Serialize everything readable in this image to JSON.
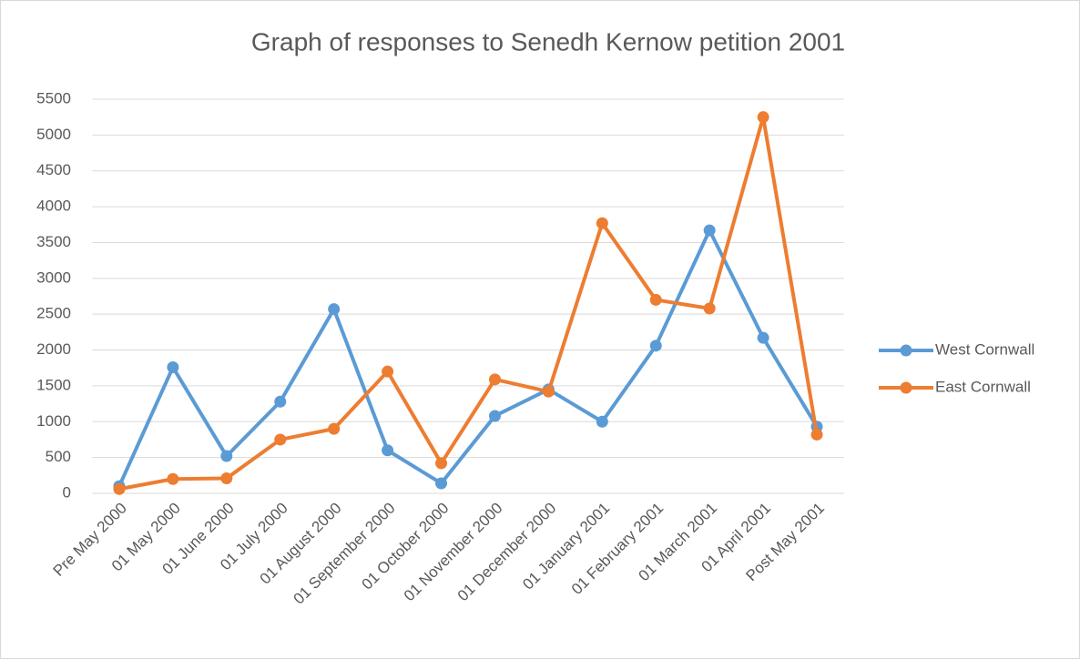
{
  "chart_data": {
    "type": "line",
    "title": "Graph of responses to Senedh Kernow petition 2001",
    "categories": [
      "Pre May 2000",
      "01 May 2000",
      "01 June 2000",
      "01 July 2000",
      "01 August 2000",
      "01 September 2000",
      "01 October 2000",
      "01 November 2000",
      "01 December 2000",
      "01 January 2001",
      "01 February 2001",
      "01 March 2001",
      "01 April 2001",
      "Post May 2001"
    ],
    "series": [
      {
        "name": "West Cornwall",
        "color": "#5b9bd5",
        "values": [
          100,
          1760,
          520,
          1280,
          2570,
          600,
          140,
          1080,
          1450,
          1000,
          2060,
          3670,
          2170,
          930
        ]
      },
      {
        "name": "East Cornwall",
        "color": "#ed7d31",
        "values": [
          60,
          200,
          210,
          750,
          900,
          1700,
          420,
          1590,
          1420,
          3770,
          2700,
          2580,
          5250,
          820
        ]
      }
    ],
    "ylim": [
      0,
      5500
    ],
    "yticks": [
      0,
      500,
      1000,
      1500,
      2000,
      2500,
      3000,
      3500,
      4000,
      4500,
      5000,
      5500
    ],
    "grid": true,
    "legend": "right"
  }
}
